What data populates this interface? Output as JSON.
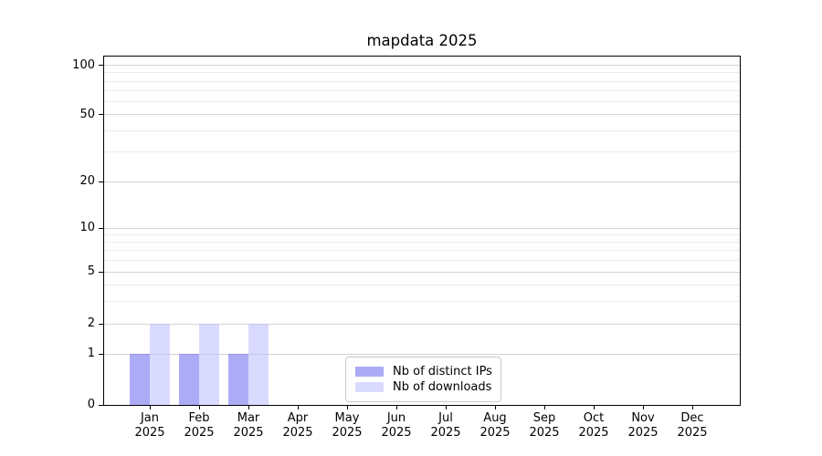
{
  "chart_data": {
    "type": "bar",
    "title": "mapdata 2025",
    "categories": [
      "Jan 2025",
      "Feb 2025",
      "Mar 2025",
      "Apr 2025",
      "May 2025",
      "Jun 2025",
      "Jul 2025",
      "Aug 2025",
      "Sep 2025",
      "Oct 2025",
      "Nov 2025",
      "Dec 2025"
    ],
    "x_tick_months": [
      "Jan",
      "Feb",
      "Mar",
      "Apr",
      "May",
      "Jun",
      "Jul",
      "Aug",
      "Sep",
      "Oct",
      "Nov",
      "Dec"
    ],
    "x_tick_year": "2025",
    "series": [
      {
        "name": "Nb of distinct IPs",
        "color": "rgba(102,102,238,0.55)",
        "color_on_white": "#ababf5",
        "values": [
          1,
          1,
          1,
          0,
          0,
          0,
          0,
          0,
          0,
          0,
          0,
          0
        ]
      },
      {
        "name": "Nb of downloads",
        "color": "rgba(187,187,255,0.55)",
        "color_on_white": "#d9d9ff",
        "values": [
          2,
          2,
          2,
          0,
          0,
          0,
          0,
          0,
          0,
          0,
          0,
          0
        ]
      }
    ],
    "yscale": "symlog",
    "ylim": [
      0,
      115
    ],
    "y_ticks": [
      0,
      1,
      2,
      5,
      10,
      20,
      50,
      100
    ],
    "y_minor_gridlines": [
      3,
      4,
      6,
      7,
      8,
      9,
      30,
      40,
      60,
      70,
      80,
      90
    ],
    "grid": "horizontal",
    "legend_position": "lower-center",
    "colors": {
      "grid_major": "#d3d3d3",
      "grid_minor": "#ececec",
      "spine": "#000000",
      "text": "#000000",
      "background": "#ffffff"
    }
  }
}
